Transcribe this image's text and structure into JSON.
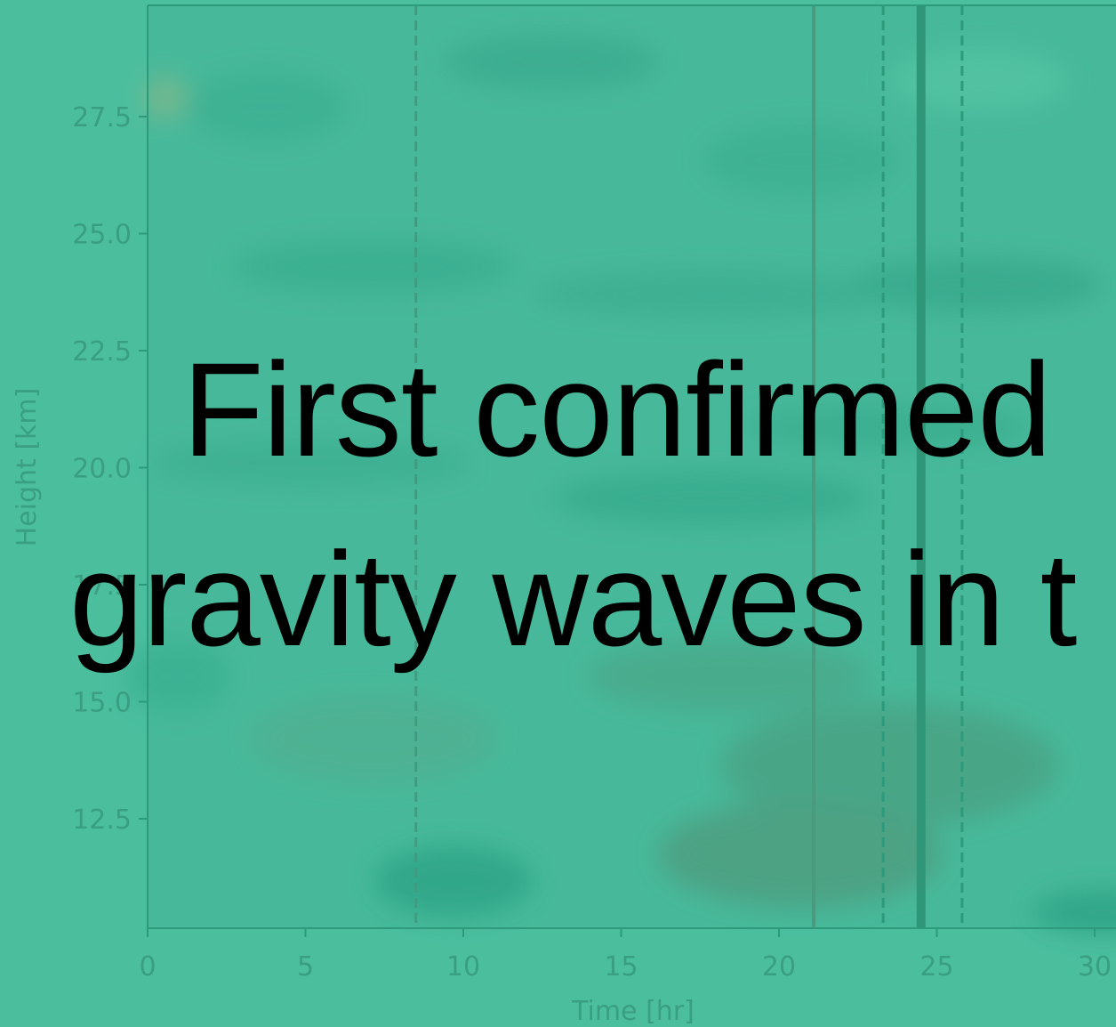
{
  "chart_data": {
    "type": "heatmap",
    "xlabel": "Time [hr]",
    "ylabel": "Height [km]",
    "xlim": [
      0,
      30
    ],
    "ylim": [
      10.2,
      29.8
    ],
    "x_ticks": [
      "0",
      "5",
      "10",
      "15",
      "20",
      "25",
      "30"
    ],
    "y_ticks": [
      "12.5",
      "15.0",
      "17.5",
      "20.0",
      "22.5",
      "25.0",
      "27.5"
    ],
    "grid": false,
    "vlines": [
      {
        "x": 8.5,
        "style": "dashed"
      },
      {
        "x": 21.1,
        "style": "solid"
      },
      {
        "x": 23.3,
        "style": "dashed"
      },
      {
        "x": 24.5,
        "style": "solid-thick"
      },
      {
        "x": 25.8,
        "style": "dashed"
      }
    ]
  },
  "overlay": {
    "line1": "First confirmed",
    "line2": "gravity waves in t"
  },
  "colors": {
    "background": "#4bbe9e",
    "axis": "#2e9a7c",
    "label": "#3a9f82",
    "text": "#000000"
  }
}
